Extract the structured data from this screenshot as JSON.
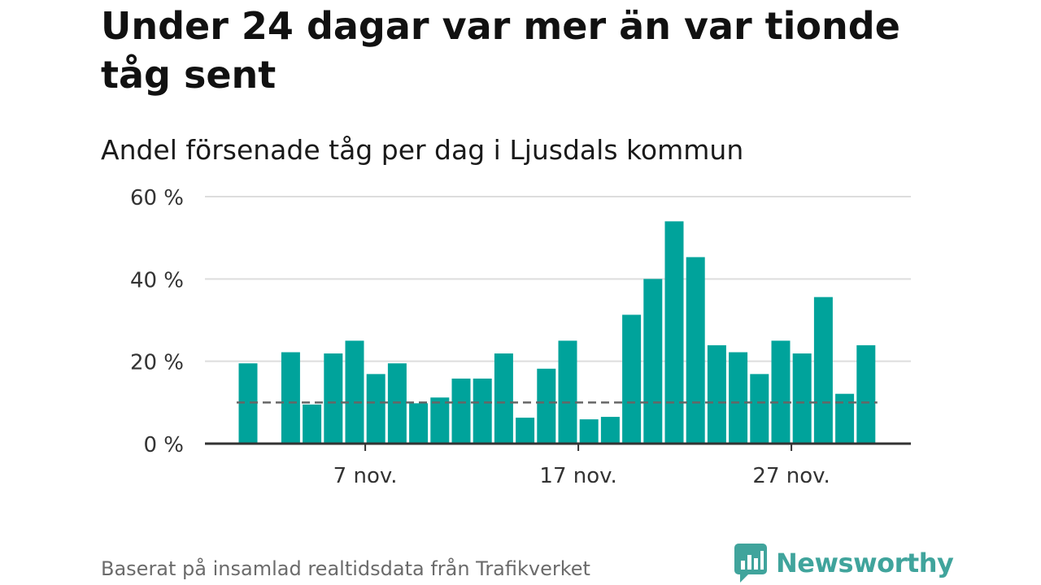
{
  "title": "Under 24 dagar var mer än var tionde tåg sent",
  "subtitle": "Andel försenade tåg per dag i Ljusdals kommun",
  "footer": "Baserat på insamlad realtidsdata från Trafikverket",
  "brand": {
    "name": "Newsworthy",
    "icon": "chat-bubble-bar-chart-icon",
    "color": "#40a49c"
  },
  "colors": {
    "bar": "#00a39b",
    "axis": "#333333",
    "grid": "#dddddd",
    "reference_line": "#666666"
  },
  "chart_data": {
    "type": "bar",
    "title": "Andel försenade tåg per dag i Ljusdals kommun",
    "xlabel": "",
    "ylabel": "",
    "unit": "%",
    "x_start": "1 nov.",
    "days": [
      1,
      2,
      3,
      4,
      5,
      6,
      7,
      8,
      9,
      10,
      11,
      12,
      13,
      14,
      15,
      16,
      17,
      18,
      19,
      20,
      21,
      22,
      23,
      24,
      25,
      26,
      27,
      28,
      29,
      30
    ],
    "values": [
      19.5,
      0,
      22.2,
      9.5,
      21.9,
      25,
      16.9,
      19.5,
      9.8,
      11.2,
      15.8,
      15.8,
      21.9,
      6.3,
      18.2,
      25,
      5.9,
      6.5,
      31.3,
      40,
      54,
      45.3,
      23.9,
      22.2,
      16.9,
      25,
      21.9,
      35.6,
      12.1,
      23.9
    ],
    "reference_line": {
      "value": 10,
      "style": "dashed"
    },
    "ylim": [
      0,
      60
    ],
    "yticks": [
      0,
      20,
      40,
      60
    ],
    "ytick_labels": [
      "0 %",
      "20 %",
      "40 %",
      "60 %"
    ],
    "xticks": [
      7,
      17,
      27
    ],
    "xtick_labels": [
      "7 nov.",
      "17 nov.",
      "27 nov."
    ],
    "grid": true,
    "legend": "none"
  }
}
